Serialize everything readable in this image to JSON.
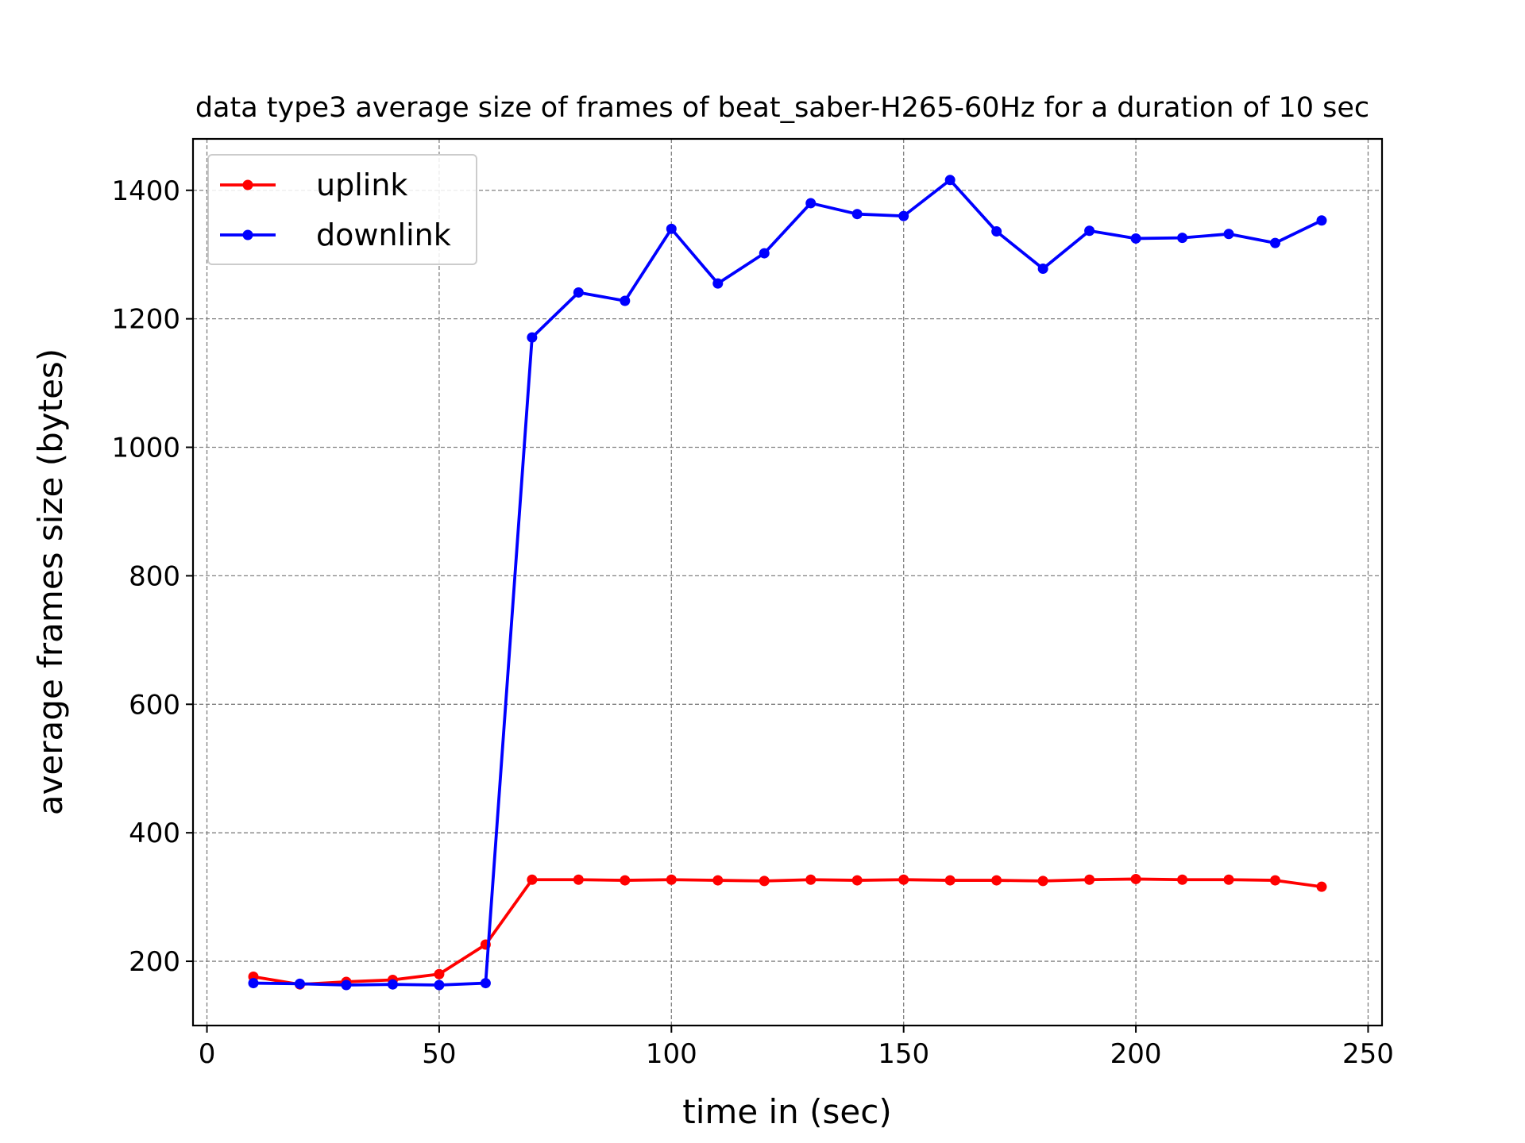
{
  "chart_data": {
    "type": "line",
    "title": "data type3 average size of frames of beat_saber-H265-60Hz for a duration of 10 sec",
    "xlabel": "time in (sec)",
    "ylabel": "average frames size (bytes)",
    "xlim": [
      -3,
      253
    ],
    "ylim": [
      100,
      1480
    ],
    "xticks": [
      0,
      50,
      100,
      150,
      200,
      250
    ],
    "yticks": [
      200,
      400,
      600,
      800,
      1000,
      1200,
      1400
    ],
    "grid": true,
    "legend": "top-left",
    "x": [
      10,
      20,
      30,
      40,
      50,
      60,
      70,
      80,
      90,
      100,
      110,
      120,
      130,
      140,
      150,
      160,
      170,
      180,
      190,
      200,
      210,
      220,
      230,
      240
    ],
    "series": [
      {
        "name": "uplink",
        "color": "#ff0000",
        "values": [
          176,
          164,
          168,
          171,
          180,
          226,
          327,
          327,
          326,
          327,
          326,
          325,
          327,
          326,
          327,
          326,
          326,
          325,
          327,
          328,
          327,
          327,
          326,
          316
        ]
      },
      {
        "name": "downlink",
        "color": "#0000ff",
        "values": [
          166,
          165,
          163,
          164,
          163,
          166,
          1171,
          1241,
          1228,
          1340,
          1255,
          1302,
          1380,
          1363,
          1360,
          1416,
          1336,
          1278,
          1337,
          1325,
          1326,
          1332,
          1318,
          1353
        ]
      }
    ]
  }
}
